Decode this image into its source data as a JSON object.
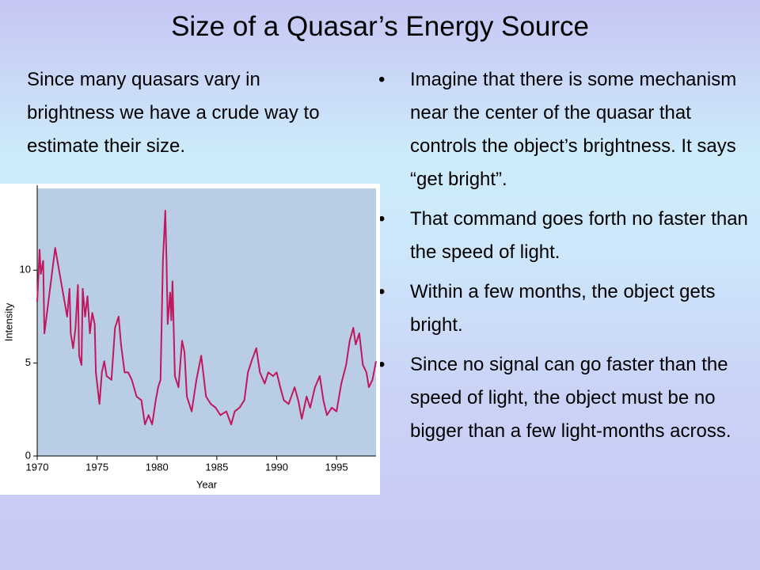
{
  "title": "Size of a Quasar’s Energy Source",
  "left_text": "Since many quasars vary in brightness we have a crude way to estimate their size.",
  "bullets": [
    "Imagine that there is some mechanism near the center of the quasar that controls the object’s brightness.  It says “get bright”.",
    "That command goes forth no faster than the speed of light.",
    "Within a few months, the object gets bright.",
    "Since no signal can go faster than the speed of light, the object must be no bigger than a few light-months across."
  ],
  "chart_data": {
    "type": "line",
    "x_label": "Year",
    "y_label": "Intensity",
    "xlim": [
      1970,
      1998.3
    ],
    "ylim": [
      0,
      14.4
    ],
    "xticks": [
      1970,
      1975,
      1980,
      1985,
      1990,
      1995
    ],
    "yticks": [
      0,
      5,
      10
    ],
    "series": [
      {
        "color": "#c0175e",
        "x": [
          1970.0,
          1970.2,
          1970.3,
          1970.5,
          1970.6,
          1971.5,
          1972.5,
          1972.7,
          1972.8,
          1973.0,
          1973.2,
          1973.4,
          1973.5,
          1973.7,
          1973.8,
          1974.0,
          1974.2,
          1974.4,
          1974.6,
          1974.8,
          1974.9,
          1975.2,
          1975.4,
          1975.6,
          1975.8,
          1976.2,
          1976.5,
          1976.8,
          1977.0,
          1977.3,
          1977.6,
          1977.9,
          1978.3,
          1978.7,
          1979.0,
          1979.3,
          1979.6,
          1979.9,
          1980.1,
          1980.3,
          1980.5,
          1980.7,
          1980.8,
          1980.9,
          1981.1,
          1981.2,
          1981.3,
          1981.5,
          1981.8,
          1982.1,
          1982.3,
          1982.5,
          1982.9,
          1983.3,
          1983.7,
          1984.1,
          1984.5,
          1984.9,
          1985.3,
          1985.8,
          1986.2,
          1986.5,
          1986.9,
          1987.3,
          1987.6,
          1987.9,
          1988.3,
          1988.6,
          1989.0,
          1989.3,
          1989.7,
          1990.0,
          1990.3,
          1990.6,
          1991.0,
          1991.5,
          1991.8,
          1992.1,
          1992.5,
          1992.8,
          1993.2,
          1993.6,
          1993.9,
          1994.2,
          1994.6,
          1995.0,
          1995.4,
          1995.8,
          1996.1,
          1996.4,
          1996.6,
          1996.9,
          1997.2,
          1997.5,
          1997.7,
          1998.0,
          1998.3
        ],
        "values": [
          8.3,
          11.1,
          9.8,
          10.5,
          6.6,
          11.2,
          7.5,
          9.0,
          6.6,
          5.8,
          6.9,
          9.2,
          5.4,
          4.9,
          9.0,
          7.5,
          8.6,
          6.6,
          7.7,
          7.1,
          4.5,
          2.8,
          4.5,
          5.1,
          4.3,
          4.1,
          6.9,
          7.5,
          6.0,
          4.5,
          4.5,
          4.1,
          3.2,
          3.0,
          1.7,
          2.2,
          1.7,
          3.0,
          3.7,
          4.1,
          10.5,
          13.2,
          10.5,
          7.1,
          8.8,
          7.3,
          9.4,
          4.3,
          3.7,
          6.2,
          5.6,
          3.2,
          2.4,
          4.1,
          5.4,
          3.2,
          2.8,
          2.6,
          2.2,
          2.4,
          1.7,
          2.4,
          2.6,
          3.0,
          4.5,
          5.1,
          5.8,
          4.5,
          3.9,
          4.5,
          4.3,
          4.5,
          3.7,
          3.0,
          2.8,
          3.7,
          3.0,
          2.0,
          3.2,
          2.6,
          3.7,
          4.3,
          3.0,
          2.2,
          2.6,
          2.4,
          3.9,
          4.9,
          6.2,
          6.9,
          6.0,
          6.6,
          4.9,
          4.5,
          3.7,
          4.1,
          5.1
        ]
      }
    ]
  }
}
